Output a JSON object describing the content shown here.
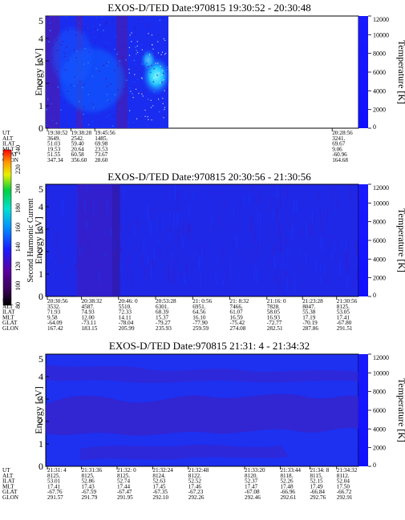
{
  "chart_data": [
    {
      "type": "heatmap",
      "title": "EXOS-D/TED  Date:970815  19:30:52 - 20:30:48",
      "ylabel": "Energy [eV]",
      "y2label": "Temperature [K]",
      "ylim": [
        0,
        5
      ],
      "y2lim": [
        0,
        12000
      ],
      "yticks": [
        "0",
        "1",
        "2",
        "3",
        "4",
        "5"
      ],
      "y2ticks": [
        "0",
        "2000",
        "4000",
        "6000",
        "8000",
        "10000",
        "12000"
      ],
      "data_end_fraction": 0.27,
      "orbit_labels": [
        "UT",
        "ALT",
        "ILAT",
        "MLT",
        "GLAT",
        "GLON"
      ],
      "orbit_columns": [
        {
          "frac": 0.0,
          "values": [
            "19:30:52",
            "3649.",
            "51.03",
            "19.53",
            "51.55",
            "347.34"
          ]
        },
        {
          "frac": 0.08,
          "values": [
            "19:38:28",
            "2542.",
            "59.40",
            "20.64",
            "60.58",
            "356.60"
          ]
        },
        {
          "frac": 0.16,
          "values": [
            "19:45:56",
            "1485.",
            "69.98",
            "23.53",
            "73.67",
            "28.60"
          ]
        },
        {
          "frac": 0.96,
          "values": [
            "20:28:56",
            "3241.",
            "69.67",
            "9.06",
            "-60.96",
            "164.68"
          ]
        }
      ]
    },
    {
      "type": "heatmap",
      "title": "EXOS-D/TED  Date:970815  20:30:56 - 21:30:56",
      "ylabel": "Energy [eV]",
      "y2label": "Temperature [K]",
      "ylim": [
        0,
        5
      ],
      "y2lim": [
        0,
        12000
      ],
      "yticks": [
        "0",
        "1",
        "2",
        "3",
        "4",
        "5"
      ],
      "y2ticks": [
        "0",
        "2000",
        "4000",
        "6000",
        "8000",
        "10000",
        "12000"
      ],
      "orbit_labels": [
        "UT",
        "ALT",
        "ILAT",
        "MLT",
        "GLAT",
        "GLON"
      ],
      "orbit_columns": [
        {
          "frac": 0.0,
          "values": [
            "20:30:56",
            "3532.",
            "71.93",
            "9.58",
            "-64.09",
            "167.42"
          ]
        },
        {
          "frac": 0.115,
          "values": [
            "20:38:32",
            "4587.",
            "74.93",
            "12.00",
            "-73.11",
            "183.15"
          ]
        },
        {
          "frac": 0.24,
          "values": [
            "20:46: 0",
            "5510.",
            "72.33",
            "14.11",
            "-78.04",
            "205.99"
          ]
        },
        {
          "frac": 0.365,
          "values": [
            "20:53:28",
            "6301.",
            "68.39",
            "15.37",
            "-79.27",
            "235.93"
          ]
        },
        {
          "frac": 0.49,
          "values": [
            "21: 0:56",
            "6951.",
            "64.56",
            "16.10",
            "-77.90",
            "259.59"
          ]
        },
        {
          "frac": 0.615,
          "values": [
            "21: 8:32",
            "7466.",
            "61.07",
            "16.59",
            "-75.42",
            "274.08"
          ]
        },
        {
          "frac": 0.74,
          "values": [
            "21:16: 0",
            "7828.",
            "58.05",
            "16.93",
            "-72.77",
            "282.51"
          ]
        },
        {
          "frac": 0.86,
          "values": [
            "21:23:28",
            "8047.",
            "55.38",
            "17.19",
            "-70.19",
            "287.86"
          ]
        },
        {
          "frac": 0.975,
          "values": [
            "21:30:56",
            "8125.",
            "53.05",
            "17.41",
            "-67.80",
            "291.51"
          ]
        }
      ]
    },
    {
      "type": "heatmap",
      "title": "EXOS-D/TED  Date:970815  21:31: 4 - 21:34:32",
      "ylabel": "Energy [eV]",
      "y2label": "Temperature [K]",
      "ylim": [
        0,
        5
      ],
      "y2lim": [
        0,
        12000
      ],
      "yticks": [
        "0",
        "1",
        "2",
        "3",
        "4",
        "5"
      ],
      "y2ticks": [
        "0",
        "2000",
        "4000",
        "6000",
        "8000",
        "10000",
        "12000"
      ],
      "orbit_labels": [
        "UT",
        "ALT",
        "ILAT",
        "MLT",
        "GLAT",
        "GLON"
      ],
      "orbit_columns": [
        {
          "frac": 0.0,
          "values": [
            "21:31: 4",
            "8125.",
            "53.01",
            "17.41",
            "-67.76",
            "291.57"
          ]
        },
        {
          "frac": 0.115,
          "values": [
            "21:31:36",
            "8125.",
            "52.86",
            "17.43",
            "-67.59",
            "291.79"
          ]
        },
        {
          "frac": 0.235,
          "values": [
            "21:32: 0",
            "8125.",
            "52.74",
            "17.44",
            "-67.47",
            "291.95"
          ]
        },
        {
          "frac": 0.355,
          "values": [
            "21:32:24",
            "8124.",
            "52.63",
            "17.45",
            "-67.35",
            "292.10"
          ]
        },
        {
          "frac": 0.475,
          "values": [
            "21:32:48",
            "8122.",
            "52.52",
            "17.46",
            "-67.23",
            "292.26"
          ]
        },
        {
          "frac": 0.665,
          "values": [
            "21:33:20",
            "8120.",
            "52.37",
            "17.47",
            "-67.08",
            "292.46"
          ]
        },
        {
          "frac": 0.785,
          "values": [
            "21:33:44",
            "8118.",
            "52.26",
            "17.48",
            "-66.96",
            "292.61"
          ]
        },
        {
          "frac": 0.885,
          "values": [
            "21:34: 8",
            "8115.",
            "52.15",
            "17.49",
            "-66.84",
            "292.76"
          ]
        },
        {
          "frac": 0.975,
          "values": [
            "21:34:32",
            "8112.",
            "52.04",
            "17.50",
            "-66.72",
            "292.91"
          ]
        }
      ]
    }
  ],
  "colorbar": {
    "label": "Second Harmonic Current",
    "ticks": [
      "80",
      "100",
      "120",
      "140",
      "160",
      "180",
      "200",
      "220",
      "240"
    ],
    "colors": [
      "#000000",
      "#3a0058",
      "#5a00a0",
      "#1c1cff",
      "#0090ff",
      "#00e0d0",
      "#00d040",
      "#e8f000",
      "#ff9800",
      "#ff0000"
    ]
  }
}
